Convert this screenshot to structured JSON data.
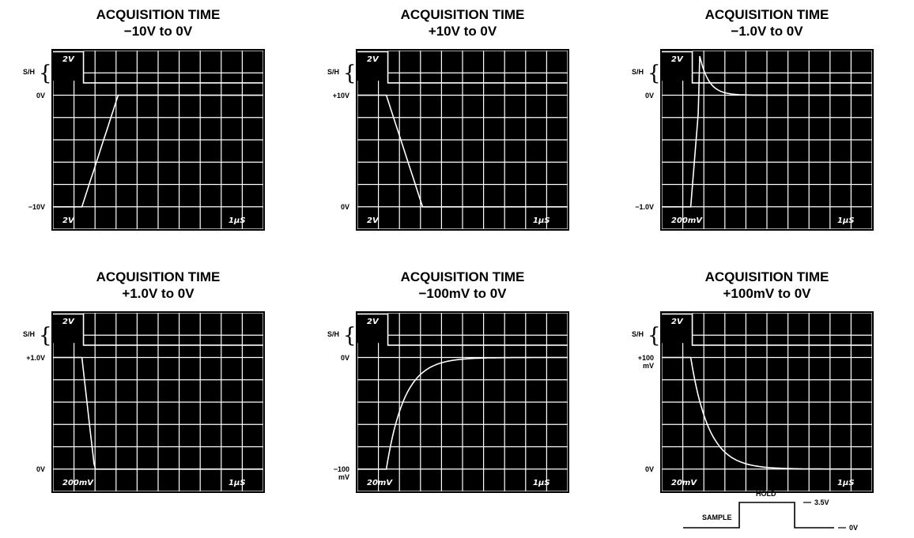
{
  "colors": {
    "screen": "#000000",
    "trace": "#ffffff",
    "grid": "#ffffff",
    "page": "#ffffff"
  },
  "panels": [
    {
      "title_line1": "ACQUISITION TIME",
      "title_line2": "−10V to 0V",
      "sh_label": "S/H",
      "upper_level": "0V",
      "lower_level": "−10V",
      "top_scale": "2V",
      "bottom_scale": "2V",
      "timebase": "1µS",
      "direction": "up",
      "curve": "ramp"
    },
    {
      "title_line1": "ACQUISITION TIME",
      "title_line2": "+10V to 0V",
      "sh_label": "S/H",
      "upper_level": "+10V",
      "lower_level": "0V",
      "top_scale": "2V",
      "bottom_scale": "2V",
      "timebase": "1µS",
      "direction": "down",
      "curve": "ramp"
    },
    {
      "title_line1": "ACQUISITION TIME",
      "title_line2": "−1.0V to 0V",
      "sh_label": "S/H",
      "upper_level": "0V",
      "lower_level": "−1.0V",
      "top_scale": "2V",
      "bottom_scale": "200mV",
      "timebase": "1µS",
      "direction": "up",
      "curve": "overshoot"
    },
    {
      "title_line1": "ACQUISITION TIME",
      "title_line2": "+1.0V to 0V",
      "sh_label": "S/H",
      "upper_level": "+1.0V",
      "lower_level": "0V",
      "top_scale": "2V",
      "bottom_scale": "200mV",
      "timebase": "1µS",
      "direction": "down",
      "curve": "fast"
    },
    {
      "title_line1": "ACQUISITION TIME",
      "title_line2": "−100mV to 0V",
      "sh_label": "S/H",
      "upper_level": "0V",
      "lower_level": "−100\nmV",
      "top_scale": "2V",
      "bottom_scale": "20mV",
      "timebase": "1µS",
      "direction": "up",
      "curve": "exp"
    },
    {
      "title_line1": "ACQUISITION TIME",
      "title_line2": "+100mV to 0V",
      "sh_label": "S/H",
      "upper_level": "+100\nmV",
      "lower_level": "0V",
      "top_scale": "2V",
      "bottom_scale": "20mV",
      "timebase": "1µS",
      "direction": "down",
      "curve": "exp"
    }
  ],
  "timing": {
    "hold_label": "HOLD",
    "sample_label": "SAMPLE",
    "high_level": "3.5V",
    "low_level": "0V"
  }
}
